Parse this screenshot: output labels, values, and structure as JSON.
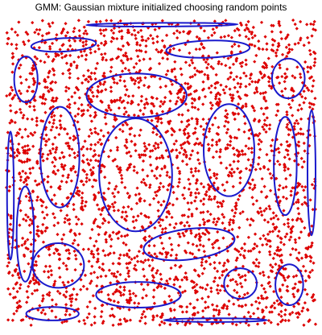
{
  "chart_data": {
    "type": "scatter",
    "title": "GMM: Gaussian mixture initialized choosing random points",
    "xlabel": "",
    "ylabel": "",
    "xlim": [
      0,
      1
    ],
    "ylim": [
      0,
      1
    ],
    "axes_visible": false,
    "grid": false,
    "point_color": "#dd0000",
    "point_marker": "diamond",
    "point_distribution": "uniform over [0,1] x [0,1]",
    "approx_point_count": 3000,
    "ellipse_color": "#1a1acc",
    "components": [
      {
        "cx": 0.185,
        "cy": 0.919,
        "rx": 0.105,
        "ry": 0.022,
        "angle": -3
      },
      {
        "cx": 0.503,
        "cy": 0.985,
        "rx": 0.245,
        "ry": 0.006,
        "angle": -0.3
      },
      {
        "cx": 0.652,
        "cy": 0.905,
        "rx": 0.135,
        "ry": 0.028,
        "angle": -2
      },
      {
        "cx": 0.063,
        "cy": 0.806,
        "rx": 0.038,
        "ry": 0.075,
        "angle": 0
      },
      {
        "cx": 0.421,
        "cy": 0.753,
        "rx": 0.162,
        "ry": 0.072,
        "angle": 0
      },
      {
        "cx": 0.912,
        "cy": 0.809,
        "rx": 0.053,
        "ry": 0.065,
        "angle": 0
      },
      {
        "cx": 0.013,
        "cy": 0.425,
        "rx": 0.011,
        "ry": 0.21,
        "angle": 0
      },
      {
        "cx": 0.173,
        "cy": 0.551,
        "rx": 0.063,
        "ry": 0.165,
        "angle": 0
      },
      {
        "cx": 0.418,
        "cy": 0.493,
        "rx": 0.118,
        "ry": 0.185,
        "angle": 0
      },
      {
        "cx": 0.72,
        "cy": 0.574,
        "rx": 0.082,
        "ry": 0.151,
        "angle": 0
      },
      {
        "cx": 0.902,
        "cy": 0.522,
        "rx": 0.037,
        "ry": 0.161,
        "angle": 0
      },
      {
        "cx": 0.987,
        "cy": 0.5,
        "rx": 0.013,
        "ry": 0.205,
        "angle": 0
      },
      {
        "cx": 0.061,
        "cy": 0.299,
        "rx": 0.028,
        "ry": 0.156,
        "angle": 0
      },
      {
        "cx": 0.591,
        "cy": 0.266,
        "rx": 0.148,
        "ry": 0.05,
        "angle": -7
      },
      {
        "cx": 0.168,
        "cy": 0.196,
        "rx": 0.083,
        "ry": 0.073,
        "angle": 0
      },
      {
        "cx": 0.427,
        "cy": 0.1,
        "rx": 0.137,
        "ry": 0.042,
        "angle": 0
      },
      {
        "cx": 0.757,
        "cy": 0.137,
        "rx": 0.053,
        "ry": 0.05,
        "angle": 0
      },
      {
        "cx": 0.915,
        "cy": 0.133,
        "rx": 0.045,
        "ry": 0.067,
        "angle": 0
      },
      {
        "cx": 0.149,
        "cy": 0.038,
        "rx": 0.085,
        "ry": 0.022,
        "angle": 0
      },
      {
        "cx": 0.676,
        "cy": 0.017,
        "rx": 0.167,
        "ry": 0.006,
        "angle": 0
      }
    ]
  }
}
